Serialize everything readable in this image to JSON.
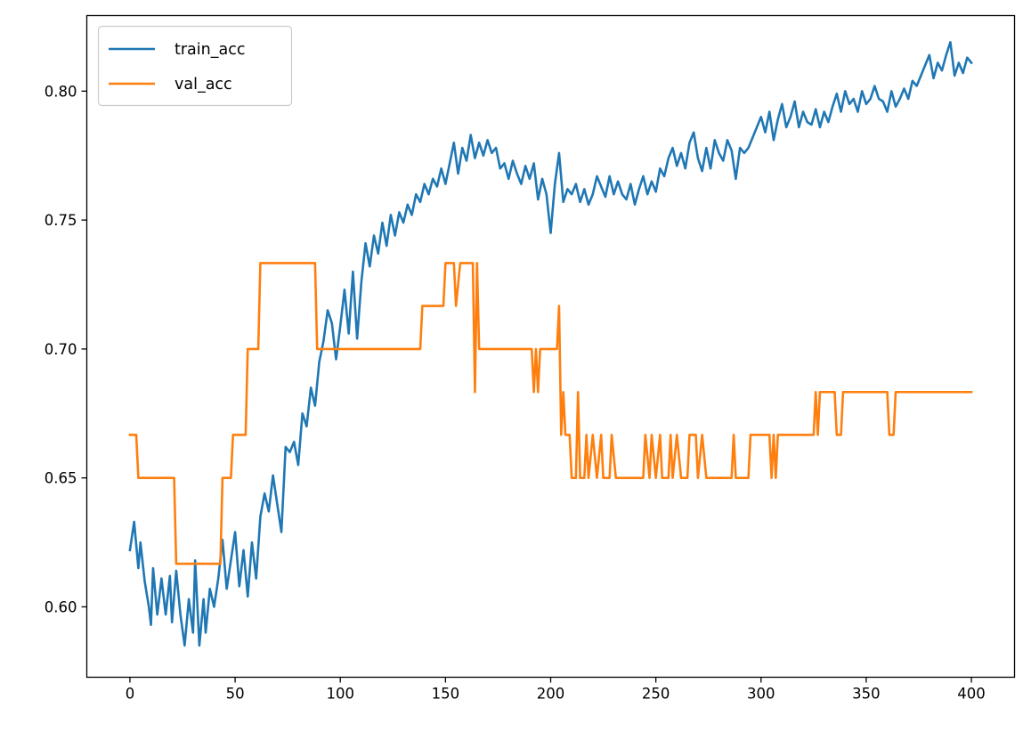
{
  "chart_data": {
    "type": "line",
    "title": "",
    "xlabel": "",
    "ylabel": "",
    "xlim": [
      -20.5,
      420.5
    ],
    "ylim": [
      0.5727,
      0.8293
    ],
    "x_ticks": [
      0,
      50,
      100,
      150,
      200,
      250,
      300,
      350,
      400
    ],
    "y_ticks": [
      0.6,
      0.65,
      0.7,
      0.75,
      0.8
    ],
    "y_tick_labels": [
      "0.60",
      "0.65",
      "0.70",
      "0.75",
      "0.80"
    ],
    "grid": false,
    "legend_position": "top-left",
    "series": [
      {
        "name": "train_acc",
        "color": "#1f77b4",
        "points": [
          [
            0,
            0.622
          ],
          [
            2,
            0.633
          ],
          [
            4,
            0.615
          ],
          [
            5,
            0.625
          ],
          [
            7,
            0.61
          ],
          [
            9,
            0.6
          ],
          [
            10,
            0.593
          ],
          [
            11,
            0.615
          ],
          [
            13,
            0.597
          ],
          [
            15,
            0.611
          ],
          [
            17,
            0.597
          ],
          [
            19,
            0.612
          ],
          [
            20,
            0.594
          ],
          [
            22,
            0.614
          ],
          [
            24,
            0.597
          ],
          [
            26,
            0.585
          ],
          [
            28,
            0.603
          ],
          [
            30,
            0.59
          ],
          [
            31,
            0.618
          ],
          [
            33,
            0.585
          ],
          [
            35,
            0.603
          ],
          [
            36,
            0.59
          ],
          [
            38,
            0.607
          ],
          [
            40,
            0.6
          ],
          [
            42,
            0.611
          ],
          [
            44,
            0.626
          ],
          [
            46,
            0.607
          ],
          [
            48,
            0.618
          ],
          [
            50,
            0.629
          ],
          [
            52,
            0.608
          ],
          [
            54,
            0.622
          ],
          [
            56,
            0.604
          ],
          [
            58,
            0.625
          ],
          [
            60,
            0.611
          ],
          [
            62,
            0.635
          ],
          [
            64,
            0.644
          ],
          [
            66,
            0.637
          ],
          [
            68,
            0.651
          ],
          [
            70,
            0.64
          ],
          [
            72,
            0.629
          ],
          [
            74,
            0.662
          ],
          [
            76,
            0.66
          ],
          [
            78,
            0.664
          ],
          [
            80,
            0.655
          ],
          [
            82,
            0.675
          ],
          [
            84,
            0.67
          ],
          [
            86,
            0.685
          ],
          [
            88,
            0.678
          ],
          [
            90,
            0.695
          ],
          [
            92,
            0.703
          ],
          [
            94,
            0.715
          ],
          [
            96,
            0.71
          ],
          [
            98,
            0.696
          ],
          [
            100,
            0.709
          ],
          [
            102,
            0.723
          ],
          [
            104,
            0.706
          ],
          [
            106,
            0.73
          ],
          [
            108,
            0.704
          ],
          [
            110,
            0.726
          ],
          [
            112,
            0.741
          ],
          [
            114,
            0.732
          ],
          [
            116,
            0.744
          ],
          [
            118,
            0.737
          ],
          [
            120,
            0.749
          ],
          [
            122,
            0.74
          ],
          [
            124,
            0.752
          ],
          [
            126,
            0.744
          ],
          [
            128,
            0.753
          ],
          [
            130,
            0.749
          ],
          [
            132,
            0.756
          ],
          [
            134,
            0.752
          ],
          [
            136,
            0.76
          ],
          [
            138,
            0.757
          ],
          [
            140,
            0.764
          ],
          [
            142,
            0.76
          ],
          [
            144,
            0.766
          ],
          [
            146,
            0.763
          ],
          [
            148,
            0.77
          ],
          [
            150,
            0.764
          ],
          [
            152,
            0.772
          ],
          [
            154,
            0.78
          ],
          [
            156,
            0.768
          ],
          [
            158,
            0.778
          ],
          [
            160,
            0.773
          ],
          [
            162,
            0.783
          ],
          [
            164,
            0.774
          ],
          [
            166,
            0.78
          ],
          [
            168,
            0.775
          ],
          [
            170,
            0.781
          ],
          [
            172,
            0.776
          ],
          [
            174,
            0.778
          ],
          [
            176,
            0.77
          ],
          [
            178,
            0.772
          ],
          [
            180,
            0.766
          ],
          [
            182,
            0.773
          ],
          [
            184,
            0.768
          ],
          [
            186,
            0.764
          ],
          [
            188,
            0.771
          ],
          [
            190,
            0.766
          ],
          [
            192,
            0.772
          ],
          [
            194,
            0.758
          ],
          [
            196,
            0.766
          ],
          [
            198,
            0.76
          ],
          [
            200,
            0.745
          ],
          [
            202,
            0.764
          ],
          [
            204,
            0.776
          ],
          [
            206,
            0.757
          ],
          [
            208,
            0.762
          ],
          [
            210,
            0.76
          ],
          [
            212,
            0.764
          ],
          [
            214,
            0.757
          ],
          [
            216,
            0.762
          ],
          [
            218,
            0.756
          ],
          [
            220,
            0.76
          ],
          [
            222,
            0.767
          ],
          [
            224,
            0.763
          ],
          [
            226,
            0.759
          ],
          [
            228,
            0.767
          ],
          [
            230,
            0.76
          ],
          [
            232,
            0.765
          ],
          [
            234,
            0.76
          ],
          [
            236,
            0.758
          ],
          [
            238,
            0.764
          ],
          [
            240,
            0.756
          ],
          [
            242,
            0.762
          ],
          [
            244,
            0.767
          ],
          [
            246,
            0.76
          ],
          [
            248,
            0.765
          ],
          [
            250,
            0.761
          ],
          [
            252,
            0.77
          ],
          [
            254,
            0.767
          ],
          [
            256,
            0.774
          ],
          [
            258,
            0.778
          ],
          [
            260,
            0.771
          ],
          [
            262,
            0.776
          ],
          [
            264,
            0.77
          ],
          [
            266,
            0.78
          ],
          [
            268,
            0.784
          ],
          [
            270,
            0.774
          ],
          [
            272,
            0.769
          ],
          [
            274,
            0.778
          ],
          [
            276,
            0.77
          ],
          [
            278,
            0.781
          ],
          [
            280,
            0.776
          ],
          [
            282,
            0.773
          ],
          [
            284,
            0.781
          ],
          [
            286,
            0.777
          ],
          [
            288,
            0.766
          ],
          [
            290,
            0.778
          ],
          [
            292,
            0.776
          ],
          [
            294,
            0.778
          ],
          [
            296,
            0.782
          ],
          [
            298,
            0.786
          ],
          [
            300,
            0.79
          ],
          [
            302,
            0.784
          ],
          [
            304,
            0.792
          ],
          [
            306,
            0.781
          ],
          [
            308,
            0.789
          ],
          [
            310,
            0.795
          ],
          [
            312,
            0.786
          ],
          [
            314,
            0.79
          ],
          [
            316,
            0.796
          ],
          [
            318,
            0.786
          ],
          [
            320,
            0.792
          ],
          [
            322,
            0.788
          ],
          [
            324,
            0.787
          ],
          [
            326,
            0.793
          ],
          [
            328,
            0.786
          ],
          [
            330,
            0.792
          ],
          [
            332,
            0.788
          ],
          [
            334,
            0.794
          ],
          [
            336,
            0.799
          ],
          [
            338,
            0.792
          ],
          [
            340,
            0.8
          ],
          [
            342,
            0.795
          ],
          [
            344,
            0.797
          ],
          [
            346,
            0.792
          ],
          [
            348,
            0.8
          ],
          [
            350,
            0.795
          ],
          [
            352,
            0.797
          ],
          [
            354,
            0.802
          ],
          [
            356,
            0.797
          ],
          [
            358,
            0.796
          ],
          [
            360,
            0.792
          ],
          [
            362,
            0.8
          ],
          [
            364,
            0.794
          ],
          [
            366,
            0.797
          ],
          [
            368,
            0.801
          ],
          [
            370,
            0.797
          ],
          [
            372,
            0.804
          ],
          [
            374,
            0.802
          ],
          [
            376,
            0.806
          ],
          [
            378,
            0.81
          ],
          [
            380,
            0.814
          ],
          [
            382,
            0.805
          ],
          [
            384,
            0.811
          ],
          [
            386,
            0.808
          ],
          [
            388,
            0.814
          ],
          [
            390,
            0.819
          ],
          [
            392,
            0.806
          ],
          [
            394,
            0.811
          ],
          [
            396,
            0.807
          ],
          [
            398,
            0.813
          ],
          [
            400,
            0.811
          ]
        ]
      },
      {
        "name": "val_acc",
        "color": "#ff7f0e",
        "points": [
          [
            0,
            0.6667
          ],
          [
            3,
            0.6667
          ],
          [
            4,
            0.65
          ],
          [
            21,
            0.65
          ],
          [
            22,
            0.6167
          ],
          [
            43,
            0.6167
          ],
          [
            44,
            0.65
          ],
          [
            48,
            0.65
          ],
          [
            49,
            0.6667
          ],
          [
            55,
            0.6667
          ],
          [
            56,
            0.7
          ],
          [
            61,
            0.7
          ],
          [
            62,
            0.7333
          ],
          [
            88,
            0.7333
          ],
          [
            89,
            0.7
          ],
          [
            138,
            0.7
          ],
          [
            139,
            0.7167
          ],
          [
            149,
            0.7167
          ],
          [
            150,
            0.7333
          ],
          [
            154,
            0.7333
          ],
          [
            155,
            0.7167
          ],
          [
            157,
            0.7333
          ],
          [
            163,
            0.7333
          ],
          [
            164,
            0.6833
          ],
          [
            165,
            0.7333
          ],
          [
            166,
            0.7
          ],
          [
            191,
            0.7
          ],
          [
            192,
            0.6833
          ],
          [
            193,
            0.7
          ],
          [
            194,
            0.6833
          ],
          [
            195,
            0.7
          ],
          [
            203,
            0.7
          ],
          [
            204,
            0.7167
          ],
          [
            205,
            0.6667
          ],
          [
            206,
            0.6833
          ],
          [
            207,
            0.6667
          ],
          [
            209,
            0.6667
          ],
          [
            210,
            0.65
          ],
          [
            212,
            0.65
          ],
          [
            213,
            0.6833
          ],
          [
            214,
            0.65
          ],
          [
            216,
            0.65
          ],
          [
            217,
            0.6667
          ],
          [
            218,
            0.65
          ],
          [
            220,
            0.6667
          ],
          [
            222,
            0.65
          ],
          [
            224,
            0.6667
          ],
          [
            225,
            0.65
          ],
          [
            228,
            0.65
          ],
          [
            229,
            0.6667
          ],
          [
            231,
            0.65
          ],
          [
            244,
            0.65
          ],
          [
            245,
            0.6667
          ],
          [
            247,
            0.65
          ],
          [
            248,
            0.6667
          ],
          [
            250,
            0.65
          ],
          [
            252,
            0.6667
          ],
          [
            253,
            0.65
          ],
          [
            256,
            0.65
          ],
          [
            257,
            0.6667
          ],
          [
            258,
            0.65
          ],
          [
            260,
            0.6667
          ],
          [
            262,
            0.65
          ],
          [
            265,
            0.65
          ],
          [
            266,
            0.6667
          ],
          [
            269,
            0.6667
          ],
          [
            270,
            0.65
          ],
          [
            272,
            0.6667
          ],
          [
            274,
            0.65
          ],
          [
            286,
            0.65
          ],
          [
            287,
            0.6667
          ],
          [
            288,
            0.65
          ],
          [
            294,
            0.65
          ],
          [
            295,
            0.6667
          ],
          [
            304,
            0.6667
          ],
          [
            305,
            0.65
          ],
          [
            306,
            0.6667
          ],
          [
            307,
            0.65
          ],
          [
            308,
            0.6667
          ],
          [
            325,
            0.6667
          ],
          [
            326,
            0.6833
          ],
          [
            327,
            0.6667
          ],
          [
            328,
            0.6833
          ],
          [
            335,
            0.6833
          ],
          [
            336,
            0.6667
          ],
          [
            338,
            0.6667
          ],
          [
            339,
            0.6833
          ],
          [
            360,
            0.6833
          ],
          [
            361,
            0.6667
          ],
          [
            363,
            0.6667
          ],
          [
            364,
            0.6833
          ],
          [
            400,
            0.6833
          ]
        ]
      }
    ]
  }
}
